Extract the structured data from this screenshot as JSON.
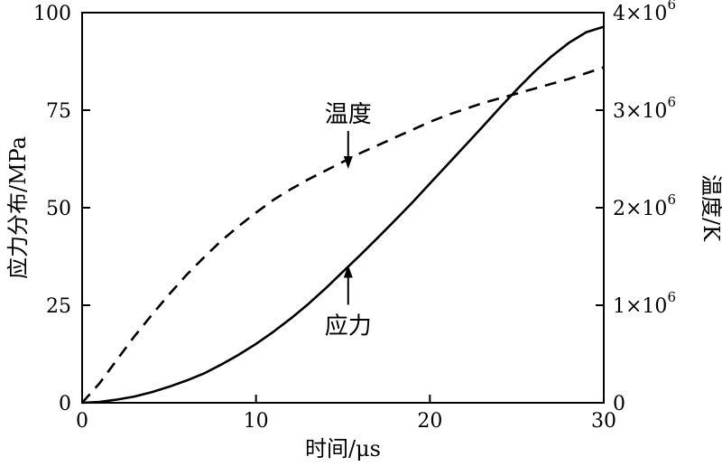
{
  "chart_data": {
    "type": "line",
    "title": "",
    "xlabel": "时间/μs",
    "ylabel": "应力分布/MPa",
    "y2label": "温度/K",
    "xlim": [
      0,
      30
    ],
    "ylim": [
      0,
      100
    ],
    "y2lim": [
      0,
      4000000
    ],
    "x_ticks": [
      0,
      10,
      20,
      30
    ],
    "x_tick_labels": [
      "0",
      "10",
      "20",
      "30"
    ],
    "y_ticks": [
      0,
      25,
      50,
      75,
      100
    ],
    "y_tick_labels": [
      "0",
      "25",
      "50",
      "75",
      "100"
    ],
    "y2_ticks": [
      0,
      1000000,
      2000000,
      3000000,
      4000000
    ],
    "y2_tick_labels": [
      {
        "mantissa": "0",
        "exponent": ""
      },
      {
        "mantissa": "1×10",
        "exponent": "6"
      },
      {
        "mantissa": "2×10",
        "exponent": "6"
      },
      {
        "mantissa": "3×10",
        "exponent": "6"
      },
      {
        "mantissa": "4×10",
        "exponent": "6"
      }
    ],
    "grid": false,
    "series": [
      {
        "name": "应力",
        "axis": "left",
        "style": "solid",
        "color": "#000000",
        "x": [
          0,
          1,
          2,
          3,
          4,
          5,
          6,
          7,
          8,
          9,
          10,
          11,
          12,
          13,
          14,
          15,
          16,
          17,
          18,
          19,
          20,
          21,
          22,
          23,
          24,
          25,
          26,
          27,
          28,
          29,
          30
        ],
        "y": [
          0,
          0.2,
          0.8,
          1.6,
          2.7,
          4.1,
          5.7,
          7.5,
          9.8,
          12.3,
          15.1,
          18.2,
          21.6,
          25.3,
          29.3,
          33.6,
          37.9,
          42.3,
          46.8,
          51.4,
          56.2,
          61.0,
          65.8,
          70.6,
          75.5,
          80.3,
          84.8,
          88.8,
          92.3,
          95.0,
          96.4
        ]
      },
      {
        "name": "温度",
        "axis": "right",
        "style": "dashed",
        "color": "#000000",
        "x": [
          0,
          1,
          2,
          3,
          4,
          5,
          6,
          7,
          8,
          9,
          10,
          11,
          12,
          13,
          14,
          15,
          16,
          17,
          18,
          19,
          20,
          21,
          22,
          23,
          24,
          25,
          26,
          27,
          28,
          29,
          30
        ],
        "y": [
          0,
          200000,
          440000,
          680000,
          900000,
          1110000,
          1310000,
          1490000,
          1660000,
          1810000,
          1950000,
          2080000,
          2190000,
          2290000,
          2380000,
          2470000,
          2560000,
          2640000,
          2720000,
          2800000,
          2880000,
          2950000,
          3010000,
          3070000,
          3120000,
          3170000,
          3220000,
          3270000,
          3320000,
          3380000,
          3440000
        ]
      }
    ],
    "annotations": [
      {
        "text": "温度",
        "series": "温度",
        "x": 15.3,
        "y": 2370000,
        "axis": "right",
        "arrow": "down"
      },
      {
        "text": "应力",
        "series": "应力",
        "x": 15.3,
        "y": 36.0,
        "axis": "left",
        "arrow": "up"
      }
    ]
  }
}
